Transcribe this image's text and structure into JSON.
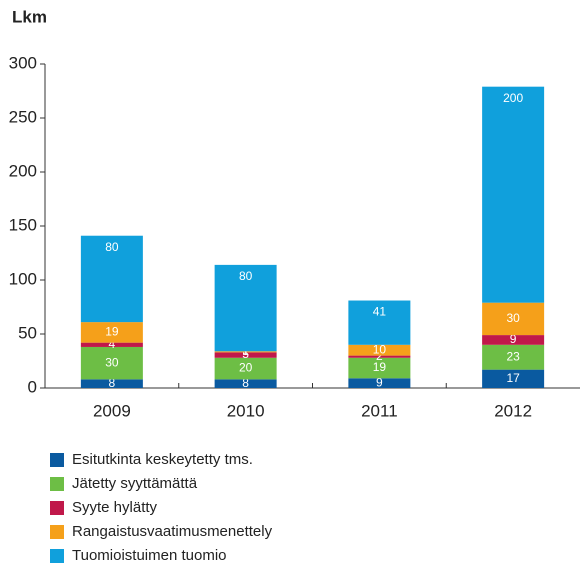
{
  "chart_data": {
    "type": "stacked_bar",
    "y_label": "Lkm",
    "categories": [
      "2009",
      "2010",
      "2011",
      "2012"
    ],
    "series": [
      {
        "name": "Esitutkinta keskeytetty tms.",
        "color": "#0a5aa0",
        "values": [
          8,
          8,
          9,
          17
        ]
      },
      {
        "name": "Jätetty syyttämättä",
        "color": "#6dbe45",
        "values": [
          30,
          20,
          19,
          23
        ]
      },
      {
        "name": "Syyte hylätty",
        "color": "#c0184a",
        "values": [
          4,
          5,
          2,
          9
        ]
      },
      {
        "name": "Rangaistusvaatimusmenettely",
        "color": "#f5a01a",
        "values": [
          19,
          1,
          10,
          30
        ]
      },
      {
        "name": "Tuomioistuimen tuomio",
        "color": "#10a0dc",
        "values": [
          80,
          80,
          41,
          200
        ]
      }
    ],
    "ylim": [
      0,
      300
    ],
    "yticks": [
      0,
      50,
      100,
      150,
      200,
      250,
      300
    ]
  }
}
